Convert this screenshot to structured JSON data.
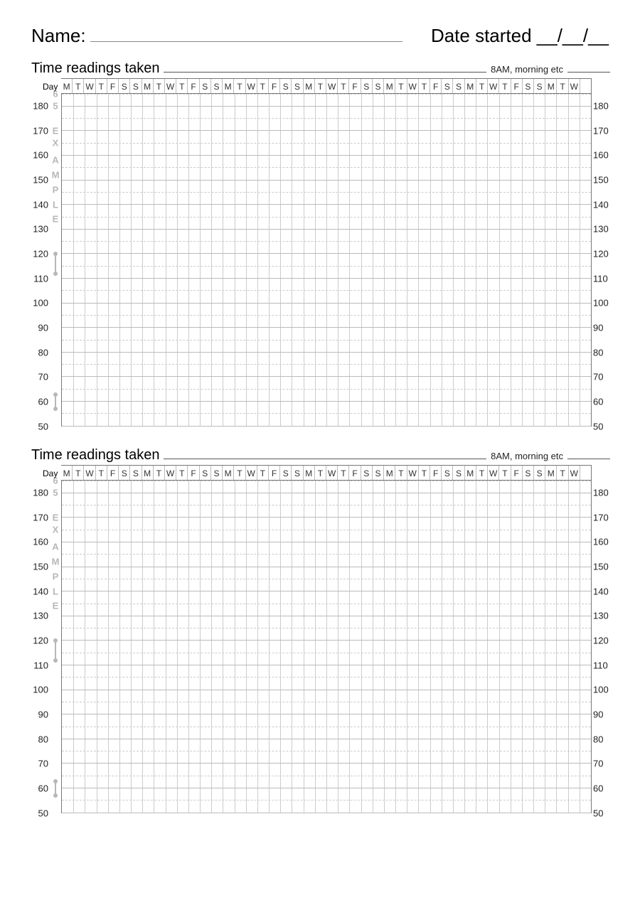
{
  "header": {
    "name_label": "Name:",
    "date_label": "Date started __/__/__"
  },
  "chart_title": "Time readings taken",
  "chart_hint": "8AM, morning etc",
  "day_label": "Day",
  "days": [
    "M",
    "T",
    "W",
    "T",
    "F",
    "S",
    "S",
    "M",
    "T",
    "W",
    "T",
    "F",
    "S",
    "S",
    "M",
    "T",
    "W",
    "T",
    "F",
    "S",
    "S",
    "M",
    "T",
    "W",
    "T",
    "F",
    "S",
    "S",
    "M",
    "T",
    "W",
    "T",
    "F",
    "S",
    "S",
    "M",
    "T",
    "W",
    "T",
    "F",
    "S",
    "S",
    "M",
    "T",
    "W"
  ],
  "y_axis": {
    "min": 50,
    "max": 185,
    "major_ticks": [
      180,
      170,
      160,
      150,
      140,
      130,
      120,
      110,
      100,
      90,
      80,
      70,
      60,
      50
    ],
    "minor_step": 5
  },
  "vertical_text": {
    "top_chars": [
      {
        "char": "6",
        "at": 185
      },
      {
        "char": "5",
        "at": 180
      },
      {
        "char": "E",
        "at": 170
      },
      {
        "char": "X",
        "at": 165
      },
      {
        "char": "A",
        "at": 158
      },
      {
        "char": "M",
        "at": 152
      },
      {
        "char": "P",
        "at": 146
      },
      {
        "char": "L",
        "at": 140
      },
      {
        "char": "E",
        "at": 134
      }
    ],
    "dumbbell_top": {
      "from": 120,
      "to": 112
    },
    "dumbbell_bottom": {
      "from": 63,
      "to": 57
    }
  },
  "colors": {
    "text": "#000000",
    "watermark": "#b7b7b7",
    "grid_major": "#bbbbbb",
    "grid_minor": "#cccccc",
    "border": "#777777"
  },
  "num_charts": 2
}
